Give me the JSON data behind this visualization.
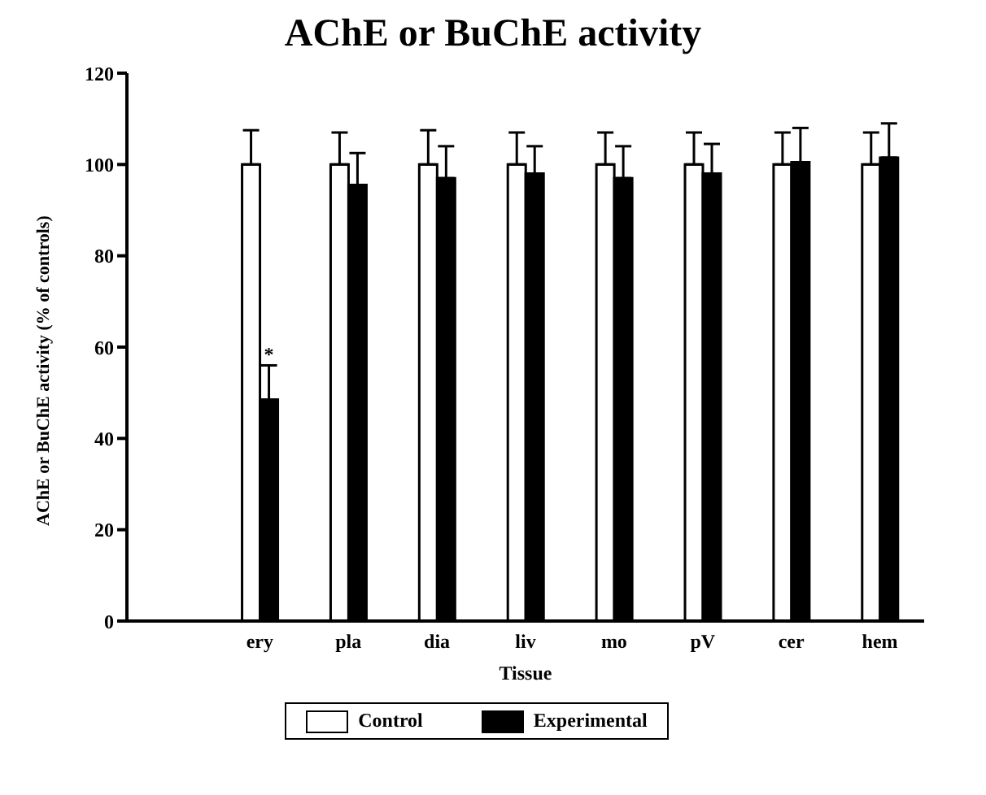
{
  "chart_data": {
    "type": "bar",
    "title": "AChE or BuChE activity",
    "xlabel": "Tissue",
    "ylabel": "AChE or BuChE activity (% of controls)",
    "categories": [
      null,
      "ery",
      "pla",
      "dia",
      "liv",
      "mo",
      "pV",
      "cer",
      "hem"
    ],
    "series": [
      {
        "name": "Control",
        "color": "#ffffff",
        "values": [
          null,
          100,
          100,
          100,
          100,
          100,
          100,
          100,
          100
        ],
        "errors": [
          null,
          [
            100,
            107.5
          ],
          [
            100,
            107
          ],
          [
            100,
            107.5
          ],
          [
            100,
            107
          ],
          [
            100,
            107
          ],
          [
            100,
            107
          ],
          [
            100,
            107
          ],
          [
            100,
            107
          ]
        ]
      },
      {
        "name": "Experimental",
        "color": "#000000",
        "values": [
          null,
          48.5,
          95.5,
          97,
          98,
          97,
          98,
          100.5,
          101.5
        ],
        "errors": [
          null,
          [
            48.5,
            56
          ],
          [
            95.5,
            102.5
          ],
          [
            97,
            104
          ],
          [
            98,
            104
          ],
          [
            97,
            104
          ],
          [
            98,
            104.5
          ],
          [
            100.5,
            108
          ],
          [
            101.5,
            109
          ]
        ]
      }
    ],
    "annotations": [
      {
        "text": "*",
        "x": "ery",
        "y": 57
      }
    ],
    "ylim": [
      0,
      120
    ],
    "yticks": [
      0,
      20,
      40,
      60,
      80,
      100,
      120
    ],
    "grid": false,
    "legend": "bottom"
  }
}
